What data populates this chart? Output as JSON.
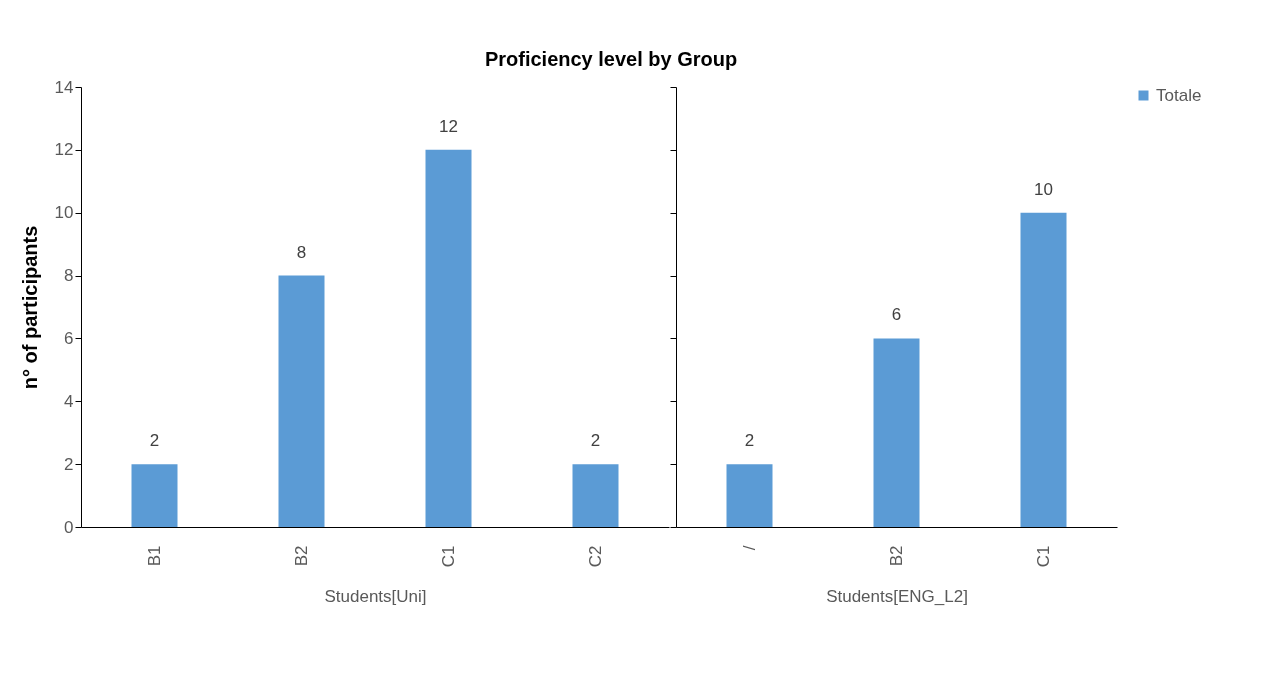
{
  "chart_data": [
    {
      "type": "bar",
      "title": "Proficiency level by Group",
      "xlabel": "Students[Uni]",
      "ylabel": "n° of participants",
      "categories": [
        "B1",
        "B2",
        "C1",
        "C2"
      ],
      "series": [
        {
          "name": "Totale",
          "color": "#5b9bd5",
          "values": [
            2,
            8,
            12,
            2
          ]
        }
      ],
      "ylim": [
        0,
        14
      ],
      "yticks": [
        0,
        2,
        4,
        6,
        8,
        10,
        12,
        14
      ],
      "data_labels": true,
      "grid": false,
      "legend": "right"
    },
    {
      "type": "bar",
      "xlabel": "Students[ENG_L2]",
      "categories": [
        "/",
        "B2",
        "C1"
      ],
      "series": [
        {
          "name": "Totale",
          "color": "#5b9bd5",
          "values": [
            2,
            6,
            10
          ]
        }
      ],
      "ylim": [
        0,
        14
      ],
      "yticks": [
        0,
        2,
        4,
        6,
        8,
        10,
        12,
        14
      ],
      "data_labels": true,
      "grid": false,
      "legend": "right",
      "tick_labels": "x"
    }
  ]
}
